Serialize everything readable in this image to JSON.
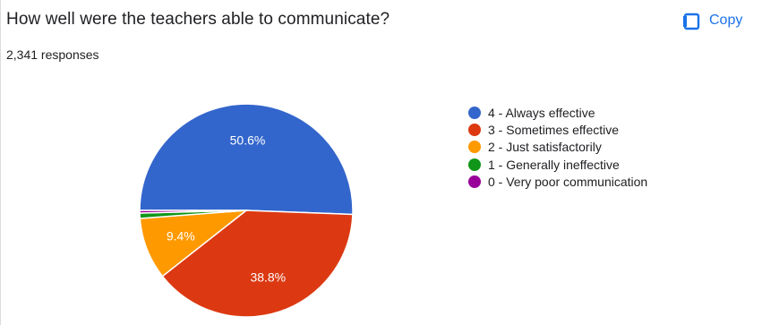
{
  "question": {
    "title": "How well were the teachers able to communicate?",
    "responses_text": "2,341 responses",
    "copy_label": "Copy",
    "copy_icon": "copy-icon",
    "accent_color": "#1a73e8"
  },
  "chart_data": {
    "type": "pie",
    "title": "How well were the teachers able to communicate?",
    "categories": [
      "4 - Always effective",
      "3 - Sometimes effective",
      "2 - Just satisfactorily",
      "1 - Generally ineffective",
      "0 - Very poor communication"
    ],
    "values": [
      50.6,
      38.8,
      9.4,
      0.8,
      0.4
    ],
    "units": "percent",
    "slice_labels": [
      "50.6%",
      "38.8%",
      "9.4%",
      "",
      ""
    ],
    "colors": [
      "#3366cc",
      "#dc3912",
      "#ff9900",
      "#109618",
      "#990099"
    ],
    "legend_position": "right",
    "start_direction": "clockwise from 9 o'clock"
  }
}
